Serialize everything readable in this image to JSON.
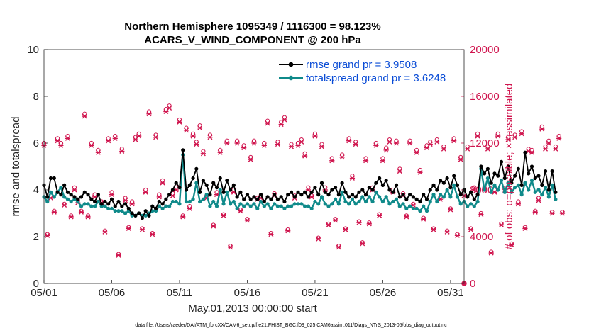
{
  "chart_data": {
    "type": "line",
    "title": "Northern Hemisphere 1095349 / 1116300 = 98.123%",
    "subtitle": "ACARS_V_WIND_COMPONENT @ 200 hPa",
    "xlabel": "May.01,2013 00:00:00 start",
    "ylabel": "rmse and totalspread",
    "ylabel_right": "# of obs: o=possible; ×=assimilated",
    "xlim": [
      0,
      31
    ],
    "ylim": [
      0,
      10
    ],
    "ylim_right": [
      0,
      20000
    ],
    "x_ticks": [
      0,
      5,
      10,
      15,
      20,
      25,
      30
    ],
    "x_tick_labels": [
      "05/01",
      "05/06",
      "05/11",
      "05/16",
      "05/21",
      "05/26",
      "05/31"
    ],
    "y_ticks": [
      "0",
      "2",
      "4",
      "6",
      "8",
      "10"
    ],
    "y_ticks_right": [
      "0",
      "4000",
      "8000",
      "12000",
      "16000",
      "20000"
    ],
    "legend": [
      "rmse grand pr = 3.9508",
      "totalspread grand pr = 3.6248"
    ],
    "legend_position": "top-right",
    "footer": "data file: /Users/raeder/DAI/ATM_forcXX/CAM6_setup/f.e21.FHIST_BGC.f09_025.CAM6assim.011/Diags_NTrS_2013-05/obs_diag_output.nc",
    "colors": {
      "rmse": "#000000",
      "spread": "#0f8a8a",
      "obs": "#d0164f",
      "legend_text": "#0a4cd6"
    },
    "series": [
      {
        "name": "rmse",
        "x_start": 0,
        "step": 0.25,
        "values": [
          4.2,
          3.7,
          4.5,
          4.5,
          3.9,
          3.8,
          4.2,
          3.9,
          3.8,
          3.7,
          3.6,
          3.7,
          3.9,
          3.8,
          3.6,
          3.5,
          3.8,
          3.4,
          3.5,
          3.4,
          3.6,
          3.3,
          3.5,
          3.3,
          3.4,
          3.2,
          3.0,
          2.9,
          3.0,
          2.8,
          3.1,
          2.9,
          3.3,
          3.2,
          3.5,
          3.4,
          3.6,
          3.8,
          4.0,
          4.3,
          4.1,
          5.7,
          4.0,
          4.2,
          4.5,
          4.9,
          3.9,
          4.4,
          4.2,
          3.8,
          4.3,
          4.1,
          4.5,
          3.9,
          4.4,
          4.0,
          4.2,
          3.7,
          3.9,
          3.6,
          3.8,
          3.6,
          3.7,
          3.6,
          3.8,
          3.5,
          3.7,
          3.6,
          3.8,
          3.6,
          3.7,
          3.5,
          3.8,
          3.9,
          3.7,
          3.9,
          3.8,
          3.9,
          3.7,
          3.9,
          4.1,
          3.8,
          4.3,
          3.9,
          3.8,
          4.0,
          4.1,
          3.8,
          4.3,
          3.9,
          3.7,
          3.8,
          3.7,
          3.9,
          4.0,
          3.8,
          4.1,
          4.0,
          4.3,
          4.5,
          4.2,
          4.4,
          4.0,
          3.9,
          4.2,
          3.7,
          3.8,
          3.6,
          3.8,
          3.7,
          3.6,
          3.5,
          3.8,
          3.6,
          4.0,
          4.2,
          4.0,
          4.4,
          4.3,
          4.5,
          4.1,
          4.6,
          4.2,
          3.8,
          4.0,
          3.7,
          3.9,
          3.6,
          3.8,
          5.0,
          4.7,
          4.9,
          4.3,
          4.7,
          4.6,
          5.2,
          4.5,
          5.0,
          4.3,
          4.6,
          4.9,
          4.2,
          5.6,
          4.7,
          5.0,
          4.5,
          4.6,
          4.2,
          4.8,
          4.0,
          4.8,
          3.9
        ],
        "color": "#000000"
      },
      {
        "name": "totalspread",
        "x_start": 0,
        "step": 0.25,
        "values": [
          3.7,
          3.5,
          3.9,
          3.7,
          3.9,
          4.1,
          3.7,
          3.6,
          3.5,
          3.6,
          3.5,
          3.3,
          3.4,
          3.4,
          3.3,
          3.3,
          3.5,
          3.3,
          3.3,
          3.2,
          3.2,
          3.1,
          3.1,
          3.1,
          3.0,
          3.1,
          2.9,
          2.9,
          3.0,
          2.9,
          2.9,
          3.0,
          3.1,
          3.1,
          3.3,
          3.2,
          3.3,
          3.3,
          3.5,
          3.5,
          3.4,
          5.5,
          3.5,
          3.5,
          3.6,
          4.3,
          3.5,
          3.6,
          3.8,
          3.3,
          3.5,
          3.3,
          4.0,
          3.4,
          3.9,
          3.4,
          3.5,
          3.2,
          3.4,
          3.3,
          3.4,
          3.3,
          3.4,
          3.2,
          3.5,
          3.3,
          3.4,
          3.2,
          3.4,
          3.3,
          3.3,
          3.2,
          3.3,
          3.3,
          3.4,
          3.4,
          3.4,
          3.3,
          3.3,
          3.2,
          3.5,
          3.4,
          3.7,
          3.4,
          3.3,
          3.4,
          3.6,
          3.4,
          3.9,
          3.5,
          3.4,
          3.6,
          3.4,
          3.5,
          3.7,
          3.5,
          3.7,
          3.5,
          3.9,
          3.7,
          3.5,
          3.7,
          3.4,
          3.5,
          3.6,
          3.3,
          3.4,
          3.2,
          3.3,
          3.2,
          3.2,
          3.1,
          3.3,
          3.1,
          3.5,
          3.8,
          3.5,
          3.8,
          3.7,
          4.0,
          3.7,
          4.2,
          3.7,
          3.4,
          3.5,
          3.3,
          3.4,
          3.3,
          3.5,
          4.9,
          4.0,
          4.5,
          3.9,
          4.2,
          4.0,
          4.4,
          3.9,
          4.3,
          3.9,
          4.1,
          4.2,
          3.8,
          4.3,
          4.0,
          4.4,
          3.9,
          4.0,
          3.8,
          4.1,
          3.7,
          4.2,
          3.6
        ],
        "color": "#0f8a8a"
      },
      {
        "name": "obs_possible",
        "x_start": 0,
        "step": 0.25,
        "values": [
          12000,
          4200,
          7500,
          6200,
          12400,
          12000,
          6800,
          12600,
          5800,
          8200,
          7100,
          6200,
          14500,
          5800,
          12000,
          7600,
          11400,
          7000,
          4500,
          12400,
          7800,
          12600,
          2500,
          11500,
          7300,
          4800,
          7000,
          12500,
          12800,
          4700,
          8000,
          14700,
          4300,
          12700,
          7600,
          8800,
          14900,
          15200,
          7700,
          8200,
          14000,
          5800,
          13300,
          6600,
          12800,
          12100,
          13500,
          11300,
          7500,
          12700,
          5000,
          7800,
          11400,
          5900,
          12200,
          3200,
          8000,
          12200,
          6300,
          11800,
          5500,
          10800,
          12200,
          7300,
          7500,
          12000,
          13900,
          4300,
          7700,
          12100,
          13800,
          14200,
          4600,
          11900,
          7500,
          12000,
          12300,
          11100,
          8200,
          7500,
          12800,
          3900,
          11900,
          8200,
          5100,
          10700,
          5500,
          3200,
          11000,
          4700,
          12400,
          9200,
          12100,
          5300,
          3500,
          10700,
          5200,
          8200,
          12000,
          5900,
          10700,
          11600,
          12300,
          8000,
          12200,
          9800,
          7700,
          5800,
          12200,
          6800,
          11400,
          9700,
          5600,
          11800,
          12100,
          4700,
          12300,
          7400,
          11700,
          4500,
          6400,
          12400,
          4200,
          10800,
          7700,
          11700,
          4700,
          8200,
          12800,
          6000,
          8200,
          11700,
          2700,
          8000,
          12800,
          5100,
          8100,
          12500,
          3400,
          12700,
          7000,
          13000,
          4800,
          11500,
          11400,
          6200,
          7300,
          13400,
          11700,
          12200,
          6100,
          11700,
          12600,
          6100
        ],
        "color": "#d0164f"
      },
      {
        "name": "obs_assimilated",
        "x_start": 0,
        "step": 0.25,
        "values": [
          11800,
          4100,
          7300,
          6100,
          12200,
          11800,
          6700,
          12400,
          5700,
          8000,
          6900,
          6100,
          14300,
          5700,
          11800,
          7400,
          11200,
          6900,
          4400,
          12200,
          7600,
          12400,
          2400,
          11300,
          7100,
          4700,
          6800,
          12300,
          12600,
          4600,
          7800,
          14500,
          4200,
          12500,
          7400,
          8600,
          14700,
          15000,
          7500,
          8000,
          13800,
          5700,
          13100,
          6400,
          12600,
          11900,
          13300,
          11100,
          7300,
          12500,
          4900,
          7600,
          11200,
          5800,
          12000,
          3100,
          7800,
          12000,
          6200,
          11600,
          5400,
          10600,
          12000,
          7200,
          7300,
          11800,
          13700,
          4200,
          7500,
          11900,
          13600,
          14000,
          4500,
          11700,
          7300,
          11800,
          12100,
          10900,
          8000,
          7400,
          12600,
          3800,
          11700,
          8000,
          5000,
          10500,
          5400,
          3100,
          10800,
          4600,
          12200,
          9000,
          11900,
          5200,
          3400,
          10500,
          5100,
          8000,
          11800,
          5800,
          10500,
          11400,
          12100,
          7800,
          12000,
          9600,
          7500,
          5700,
          12000,
          6700,
          11200,
          9500,
          5500,
          11600,
          11900,
          4600,
          12100,
          7200,
          11500,
          4400,
          6300,
          12200,
          4100,
          10600,
          7500,
          11500,
          4600,
          8000,
          12600,
          5900,
          8000,
          11500,
          2600,
          7800,
          12600,
          5000,
          7900,
          12300,
          3300,
          12500,
          6800,
          12800,
          4700,
          11300,
          11200,
          6100,
          7100,
          13200,
          11500,
          12000,
          6000,
          11500,
          12400,
          6000
        ],
        "color": "#d0164f"
      }
    ]
  }
}
